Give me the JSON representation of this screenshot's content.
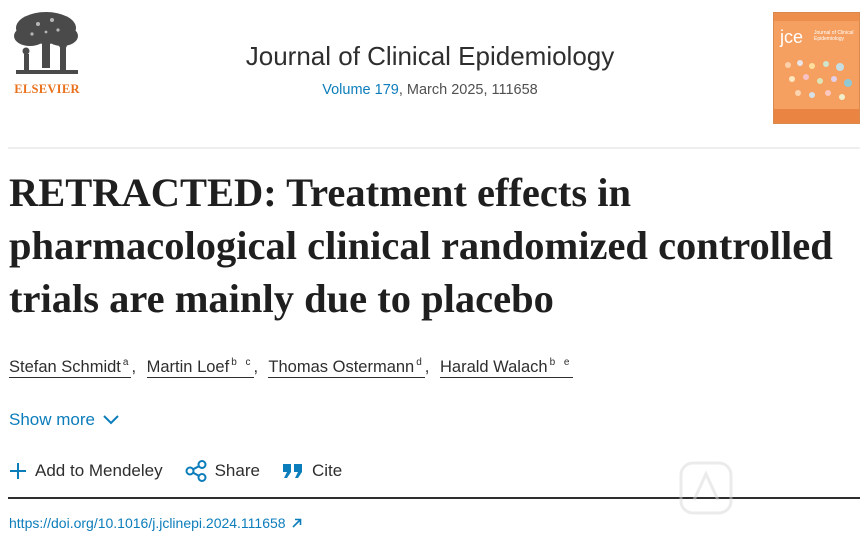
{
  "publisher": {
    "name": "ELSEVIER",
    "logo_icon": "elsevier-tree-logo"
  },
  "journal": {
    "title": "Journal of Clinical Epidemiology",
    "volume_link": "Volume 179",
    "meta_rest": ", March 2025, 111658",
    "cover_abbrev": "jce",
    "cover_subtitle": "Journal of Clinical Epidemiology"
  },
  "article": {
    "title": "RETRACTED: Treatment effects in pharmacological clinical randomized controlled trials are mainly due to placebo",
    "authors": [
      {
        "name": "Stefan Schmidt",
        "aff": "a"
      },
      {
        "name": "Martin Loef",
        "aff": "b c"
      },
      {
        "name": "Thomas Ostermann",
        "aff": "d"
      },
      {
        "name": "Harald Walach",
        "aff": "b e"
      }
    ],
    "author_separator": ",",
    "show_more": "Show more",
    "doi": "https://doi.org/10.1016/j.jclinepi.2024.111658"
  },
  "actions": {
    "mendeley": "Add to Mendeley",
    "share": "Share",
    "cite": "Cite"
  },
  "colors": {
    "link": "#0c7dbb",
    "publisher_orange": "#e9711c",
    "cover": "#f5a060"
  }
}
